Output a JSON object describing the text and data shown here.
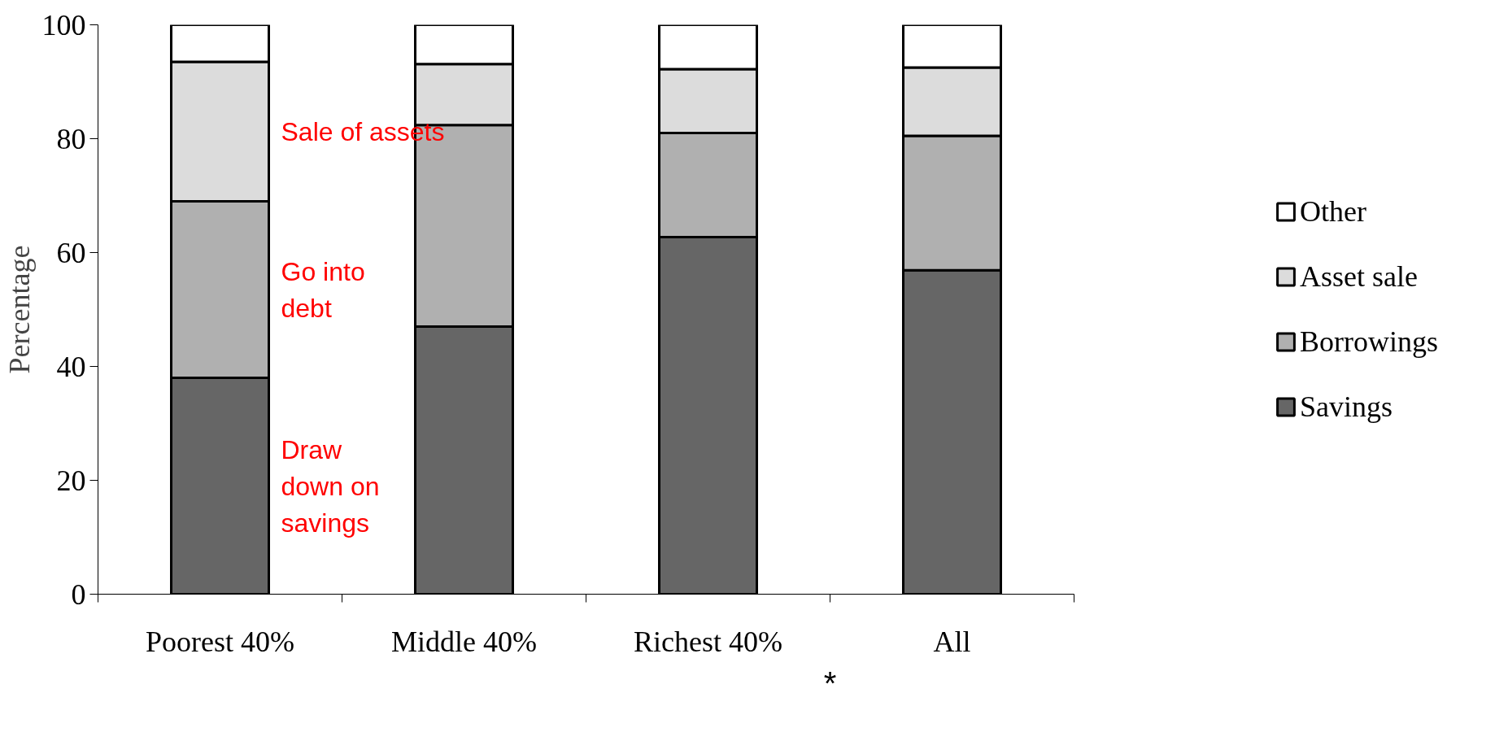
{
  "chart_data": {
    "type": "bar",
    "stacked": true,
    "ylabel": "Percentage",
    "categories": [
      "Poorest 40%",
      "Middle 40%",
      "Richest 40%",
      "All"
    ],
    "series": [
      {
        "name": "Savings",
        "color": "#666666",
        "values": [
          38,
          47,
          62.7,
          56.9
        ]
      },
      {
        "name": "Borrowings",
        "color": "#b0b0b0",
        "values": [
          31,
          35.4,
          18.3,
          23.6
        ]
      },
      {
        "name": "Asset sale",
        "color": "#dcdcdc",
        "values": [
          24.5,
          10.7,
          11.2,
          12
        ]
      },
      {
        "name": "Other",
        "color": "#ffffff",
        "values": [
          6.5,
          6.9,
          7.8,
          7.5
        ]
      }
    ],
    "ylim": [
      0,
      100
    ],
    "yticks": [
      0,
      20,
      40,
      60,
      80,
      100
    ],
    "grid": false,
    "legend": "right",
    "annotations": [
      "Sale of assets",
      "Go into\ndebt",
      "Draw\ndown on\nsavings",
      "*"
    ]
  }
}
